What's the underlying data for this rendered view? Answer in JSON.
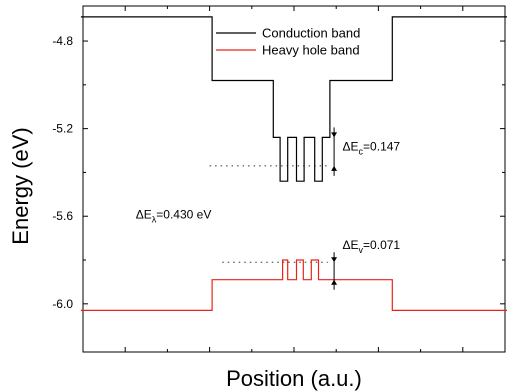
{
  "chart_data": {
    "type": "line",
    "title": "",
    "xlabel": "Position (a.u.)",
    "ylabel": "Energy (eV)",
    "xlim": [
      0,
      100
    ],
    "ylim": [
      -6.22,
      -4.64
    ],
    "y_ticks": [
      -4.8,
      -5.2,
      -5.6,
      -6.0
    ],
    "y_tick_labels": [
      "-4.8",
      "-5.2",
      "-5.6",
      "-6.0"
    ],
    "x_ticks": [
      10,
      30,
      50,
      70,
      90
    ],
    "x_tick_labels": [
      "",
      "",
      "",
      "",
      ""
    ],
    "grid": false,
    "legend_position": "top-right",
    "series": [
      {
        "name": "Conduction band",
        "color": "#000000",
        "x": [
          -0.5,
          30.6,
          30.6,
          45.1,
          45.1,
          46.7,
          46.7,
          48.5,
          48.5,
          50.6,
          50.6,
          52.4,
          52.4,
          54.9,
          54.9,
          56.7,
          56.7,
          58.5,
          58.5,
          73.3,
          73.3,
          100.5
        ],
        "y": [
          -4.69,
          -4.69,
          -4.98,
          -4.98,
          -5.24,
          -5.24,
          -5.44,
          -5.44,
          -5.24,
          -5.24,
          -5.44,
          -5.44,
          -5.24,
          -5.24,
          -5.44,
          -5.44,
          -5.24,
          -5.24,
          -4.98,
          -4.98,
          -4.69,
          -4.69
        ]
      },
      {
        "name": "Heavy hole band",
        "color": "#e8241a",
        "x": [
          -0.5,
          30.6,
          30.6,
          47.3,
          47.3,
          48.5,
          48.5,
          50.6,
          50.6,
          52.2,
          52.2,
          54.1,
          54.1,
          55.8,
          55.8,
          58.5,
          58.5,
          73.3,
          73.3,
          100.5
        ],
        "y": [
          -6.03,
          -6.03,
          -5.89,
          -5.89,
          -5.8,
          -5.8,
          -5.89,
          -5.89,
          -5.8,
          -5.8,
          -5.89,
          -5.89,
          -5.8,
          -5.8,
          -5.89,
          -5.89,
          -5.89,
          -5.89,
          -6.03,
          -6.03
        ]
      }
    ],
    "reference_lines": [
      {
        "y": -5.37,
        "x": [
          30,
          58
        ],
        "style": "dotted"
      },
      {
        "y": -5.81,
        "x": [
          33,
          58
        ],
        "style": "dotted"
      }
    ],
    "offsets": [
      {
        "x": 59.5,
        "y1": -5.24,
        "y2": -5.37
      },
      {
        "x": 59.5,
        "y1": -5.81,
        "y2": -5.89
      }
    ],
    "annotations": [
      {
        "id": "dec",
        "base": "ΔE",
        "sub": "c",
        "rest": "=0.147",
        "x": 61.5,
        "y": -5.3
      },
      {
        "id": "dev",
        "base": "ΔE",
        "sub": "v",
        "rest": "=0.071",
        "x": 61.5,
        "y": -5.75
      },
      {
        "id": "del",
        "base": "ΔE",
        "sub": "λ",
        "rest": "=0.430 eV",
        "x": 12.5,
        "y": -5.61
      }
    ]
  }
}
